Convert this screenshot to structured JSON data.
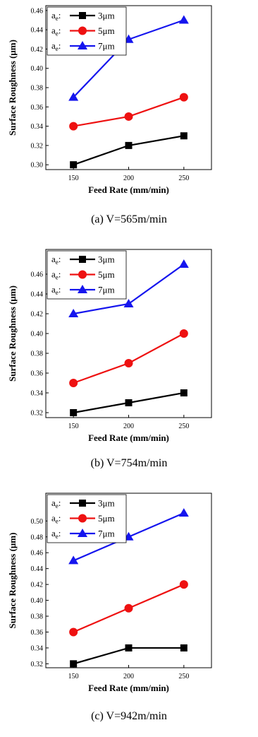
{
  "chart_data": [
    {
      "type": "line",
      "caption": "(a) V=565m/min",
      "xlabel": "Feed Rate (mm/min)",
      "ylabel": "Surface Roughness (μm)",
      "x": [
        150,
        200,
        250
      ],
      "xticks": [
        "150",
        "200",
        "250"
      ],
      "xlim": [
        125,
        275
      ],
      "ylim": [
        0.295,
        0.465
      ],
      "yticks": [
        "0.30",
        "0.32",
        "0.34",
        "0.36",
        "0.38",
        "0.40",
        "0.42",
        "0.44",
        "0.46"
      ],
      "ytick_values": [
        0.3,
        0.32,
        0.34,
        0.36,
        0.38,
        0.4,
        0.42,
        0.44,
        0.46
      ],
      "legend_position": "top-left",
      "legend_prefix": "a",
      "legend_sub": "e",
      "series": [
        {
          "name": "3μm",
          "values": [
            0.3,
            0.32,
            0.33
          ],
          "color": "#000000",
          "marker": "square"
        },
        {
          "name": "5μm",
          "values": [
            0.34,
            0.35,
            0.37
          ],
          "color": "#ee1111",
          "marker": "circle"
        },
        {
          "name": "7μm",
          "values": [
            0.37,
            0.43,
            0.45
          ],
          "color": "#1515ee",
          "marker": "triangle"
        }
      ]
    },
    {
      "type": "line",
      "caption": "(b) V=754m/min",
      "xlabel": "Feed Rate (mm/min)",
      "ylabel": "Surface Roughness (μm)",
      "x": [
        150,
        200,
        250
      ],
      "xticks": [
        "150",
        "200",
        "250"
      ],
      "xlim": [
        125,
        275
      ],
      "ylim": [
        0.315,
        0.485
      ],
      "yticks": [
        "0.32",
        "0.34",
        "0.36",
        "0.38",
        "0.40",
        "0.42",
        "0.44",
        "0.46"
      ],
      "ytick_values": [
        0.32,
        0.34,
        0.36,
        0.38,
        0.4,
        0.42,
        0.44,
        0.46
      ],
      "legend_position": "top-left",
      "legend_prefix": "a",
      "legend_sub": "e",
      "series": [
        {
          "name": "3μm",
          "values": [
            0.32,
            0.33,
            0.34
          ],
          "color": "#000000",
          "marker": "square"
        },
        {
          "name": "5μm",
          "values": [
            0.35,
            0.37,
            0.4
          ],
          "color": "#ee1111",
          "marker": "circle"
        },
        {
          "name": "7μm",
          "values": [
            0.42,
            0.43,
            0.47
          ],
          "color": "#1515ee",
          "marker": "triangle"
        }
      ]
    },
    {
      "type": "line",
      "caption": "(c) V=942m/min",
      "xlabel": "Feed Rate (mm/min)",
      "ylabel": "Surface Roughness (μm)",
      "x": [
        150,
        200,
        250
      ],
      "xticks": [
        "150",
        "200",
        "250"
      ],
      "xlim": [
        125,
        275
      ],
      "ylim": [
        0.315,
        0.535
      ],
      "yticks": [
        "0.32",
        "0.34",
        "0.36",
        "0.38",
        "0.40",
        "0.42",
        "0.44",
        "0.46",
        "0.48",
        "0.50"
      ],
      "ytick_values": [
        0.32,
        0.34,
        0.36,
        0.38,
        0.4,
        0.42,
        0.44,
        0.46,
        0.48,
        0.5
      ],
      "legend_position": "top-left",
      "legend_prefix": "a",
      "legend_sub": "e",
      "series": [
        {
          "name": "3μm",
          "values": [
            0.32,
            0.34,
            0.34
          ],
          "color": "#000000",
          "marker": "square"
        },
        {
          "name": "5μm",
          "values": [
            0.36,
            0.39,
            0.42
          ],
          "color": "#ee1111",
          "marker": "circle"
        },
        {
          "name": "7μm",
          "values": [
            0.45,
            0.48,
            0.51
          ],
          "color": "#1515ee",
          "marker": "triangle"
        }
      ]
    }
  ]
}
